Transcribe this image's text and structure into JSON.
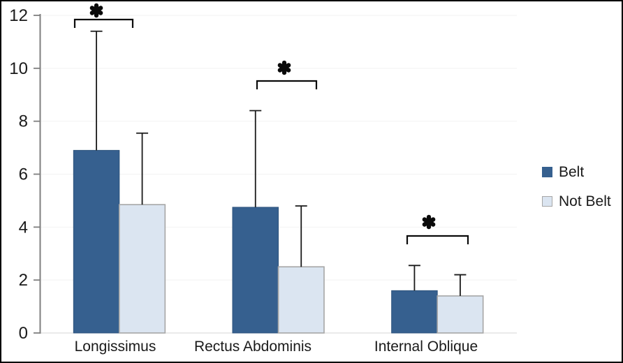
{
  "chart_data": {
    "type": "bar",
    "title": "",
    "categories": [
      "Longissimus",
      "Rectus Abdominis",
      "Internal Oblique"
    ],
    "series": [
      {
        "name": "Belt",
        "color": "#36608F",
        "border_color": "#2E537C",
        "values": [
          6.9,
          4.75,
          1.6
        ],
        "error_up": [
          4.5,
          3.65,
          0.95
        ]
      },
      {
        "name": "Not Belt",
        "color": "#DBE5F1",
        "border_color": "#A6A6A6",
        "values": [
          4.85,
          2.5,
          1.4
        ],
        "error_up": [
          2.7,
          2.3,
          0.8
        ]
      }
    ],
    "ylim": [
      0,
      12
    ],
    "yticks": [
      "0",
      "2",
      "4",
      "6",
      "8",
      "10",
      "12"
    ],
    "xlabel": "",
    "ylabel": "",
    "grid": "horizontal-faint",
    "legend_position": "right",
    "significance_markers": [
      {
        "marker": "✱",
        "category": "Longissimus",
        "bracket_x1": 107,
        "bracket_x2": 190,
        "bracket_y": 28,
        "marker_x": 138,
        "marker_y": 15
      },
      {
        "marker": "✱",
        "category": "Rectus Abdominis",
        "bracket_x1": 368,
        "bracket_x2": 453,
        "bracket_y": 116,
        "marker_x": 407,
        "marker_y": 97
      },
      {
        "marker": "✱",
        "category": "Internal Oblique",
        "bracket_x1": 583,
        "bracket_x2": 670,
        "bracket_y": 338,
        "marker_x": 614,
        "marker_y": 318
      }
    ]
  },
  "colors": {
    "frame_border": "#000000",
    "axis": "#7F7F7F",
    "tick_text": "#1a1a1a",
    "gridline": "#F2F2F2",
    "baseline": "#D6D6D6",
    "error_bar": "#1a1a1a",
    "significance": "#0a0a0a",
    "background": "#FFFFFF"
  }
}
